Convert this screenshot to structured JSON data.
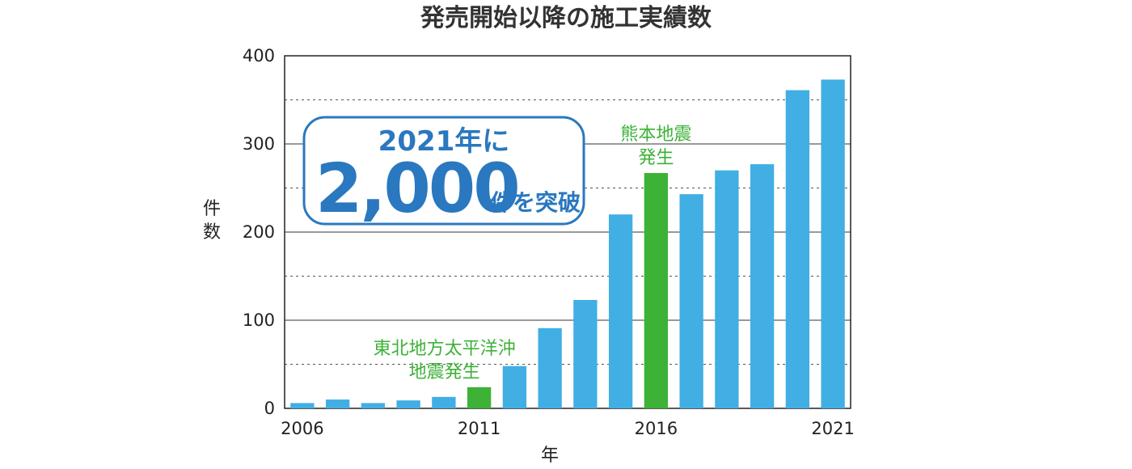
{
  "chart_data": {
    "type": "bar",
    "title": "発売開始以降の施工実績数",
    "xlabel": "年",
    "ylabel": "件数",
    "ylim": [
      0,
      400
    ],
    "yticks": [
      "0",
      "100",
      "200",
      "300",
      "400"
    ],
    "grid": true,
    "categories": [
      "2006",
      "2007",
      "2008",
      "2009",
      "2010",
      "2011",
      "2012",
      "2013",
      "2014",
      "2015",
      "2016",
      "2017",
      "2018",
      "2019",
      "2020",
      "2021"
    ],
    "xtick_labels": [
      "2006",
      "2011",
      "2016",
      "2021"
    ],
    "values": [
      6,
      10,
      6,
      9,
      13,
      24,
      48,
      91,
      123,
      220,
      267,
      243,
      270,
      277,
      361,
      373
    ],
    "colors": {
      "default": "#41aee4",
      "highlight": "#3db236",
      "callout": "#2a78bf"
    },
    "highlight_categories": [
      "2011",
      "2016"
    ],
    "annotations": [
      {
        "lines": [
          "東北地方太平洋沖",
          "地震発生"
        ],
        "category": "2011"
      },
      {
        "lines": [
          "熊本地震",
          "発生"
        ],
        "category": "2016"
      }
    ],
    "callout": {
      "line1": "2021年に",
      "big": "2,000",
      "small": "件を突破"
    }
  }
}
